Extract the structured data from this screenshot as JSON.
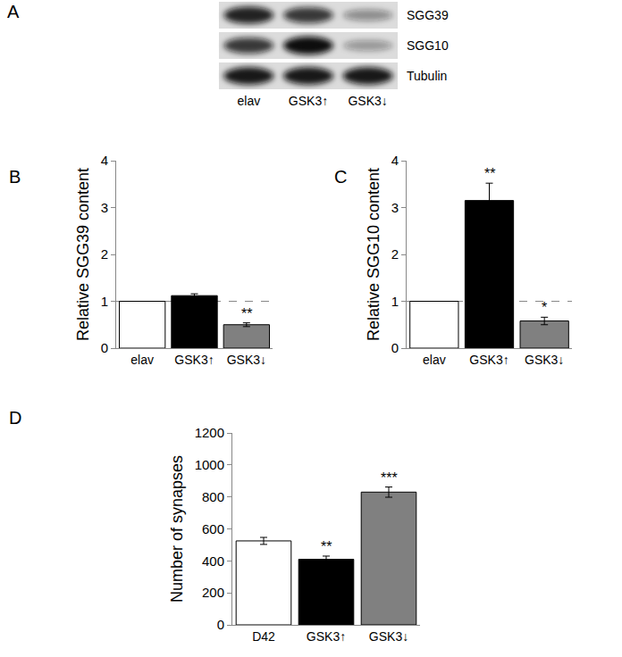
{
  "blot": {
    "panel": "A",
    "lanes": [
      "elav",
      "GSK3↑",
      "GSK3↓"
    ],
    "rows": [
      {
        "label": "SGG39",
        "intensity": [
          0.9,
          0.8,
          0.4
        ]
      },
      {
        "label": "SGG10",
        "intensity": [
          0.8,
          1.0,
          0.35
        ]
      },
      {
        "label": "Tubulin",
        "intensity": [
          0.95,
          0.95,
          0.95
        ]
      }
    ]
  },
  "chart_data": [
    {
      "panel": "B",
      "type": "bar",
      "categories": [
        "elav",
        "GSK3↑",
        "GSK3↓"
      ],
      "values": [
        1,
        1.12,
        0.5
      ],
      "errors": [
        0,
        0.04,
        0.04
      ],
      "colors": [
        "#ffffff",
        "#000000",
        "#808080"
      ],
      "y_label": "Relative SGG39 content",
      "ylim": [
        0,
        4
      ],
      "yticks": [
        0,
        1,
        2,
        3,
        4
      ],
      "baseline": 1,
      "significance": [
        null,
        null,
        "**"
      ]
    },
    {
      "panel": "C",
      "type": "bar",
      "categories": [
        "elav",
        "GSK3↑",
        "GSK3↓"
      ],
      "values": [
        1,
        3.15,
        0.58
      ],
      "errors": [
        0,
        0.37,
        0.08
      ],
      "colors": [
        "#ffffff",
        "#000000",
        "#808080"
      ],
      "y_label": "Relative SGG10 content",
      "ylim": [
        0,
        4
      ],
      "yticks": [
        0,
        1,
        2,
        3,
        4
      ],
      "baseline": 1,
      "significance": [
        null,
        "**",
        "*"
      ]
    },
    {
      "panel": "D",
      "type": "bar",
      "categories": [
        "D42",
        "GSK3↑",
        "GSK3↓"
      ],
      "values": [
        525,
        410,
        830
      ],
      "errors": [
        22,
        20,
        32
      ],
      "colors": [
        "#ffffff",
        "#000000",
        "#808080"
      ],
      "y_label": "Number of synapses",
      "ylim": [
        0,
        1200
      ],
      "yticks": [
        0,
        200,
        400,
        600,
        800,
        1000,
        1200
      ],
      "significance": [
        null,
        "**",
        "***"
      ]
    }
  ]
}
